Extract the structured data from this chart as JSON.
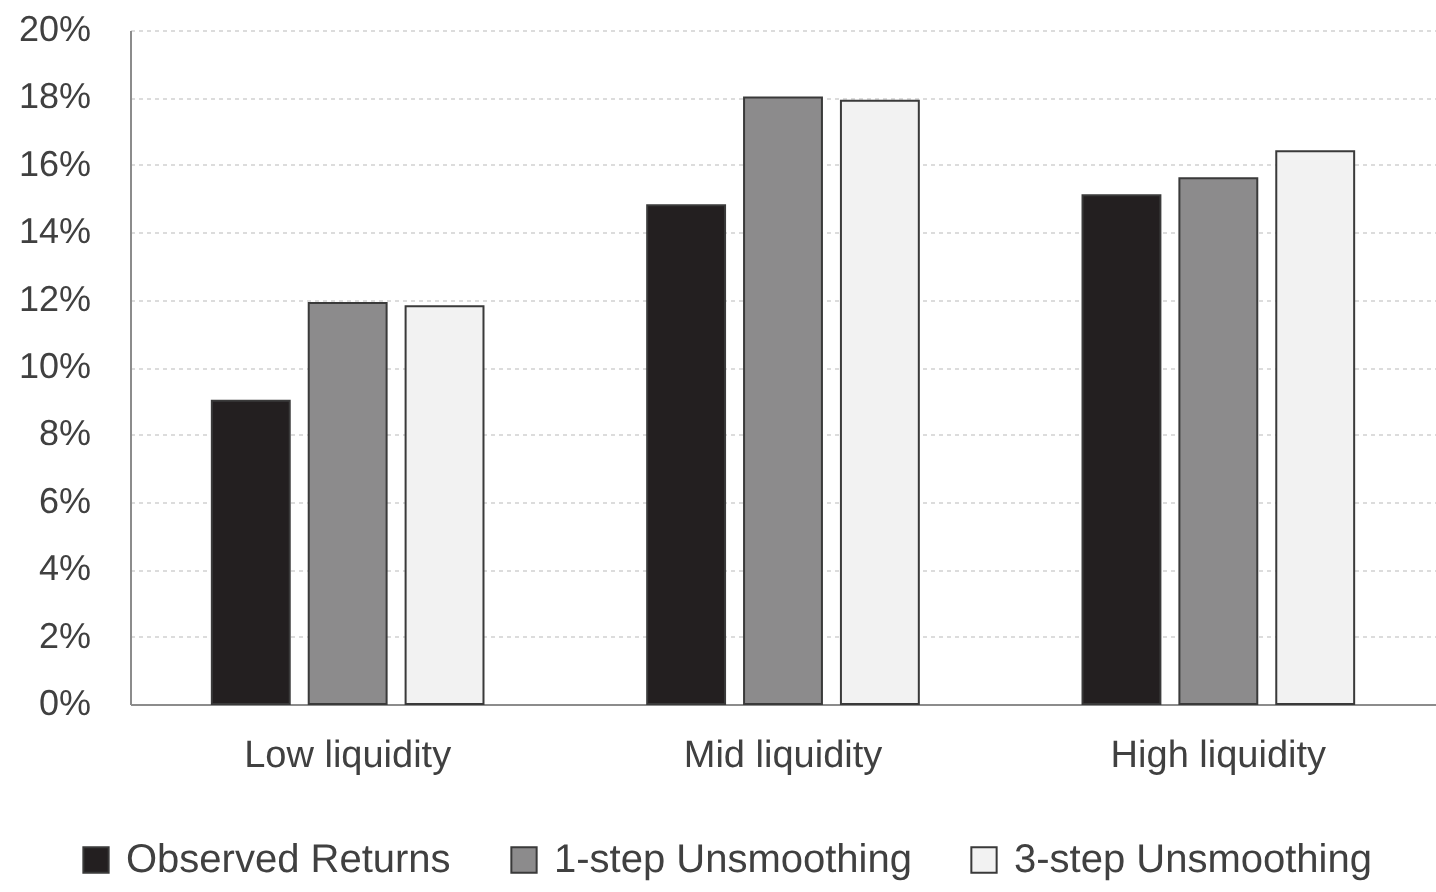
{
  "chart_data": {
    "type": "bar",
    "categories": [
      "Low liquidity",
      "Mid liquidity",
      "High liquidity"
    ],
    "series": [
      {
        "name": "Observed Returns",
        "color": "#231f20",
        "values": [
          9.0,
          14.8,
          15.1
        ]
      },
      {
        "name": "1-step Unsmoothing",
        "color": "#8c8b8c",
        "values": [
          11.9,
          18.0,
          15.6
        ]
      },
      {
        "name": "3-step Unsmoothing",
        "color": "#f2f2f2",
        "values": [
          11.8,
          17.9,
          16.4
        ]
      }
    ],
    "ylim": [
      0,
      20
    ],
    "yticks": [
      {
        "value": 0,
        "label": "0%"
      },
      {
        "value": 2,
        "label": "2%"
      },
      {
        "value": 4,
        "label": "4%"
      },
      {
        "value": 6,
        "label": "6%"
      },
      {
        "value": 8,
        "label": "8%"
      },
      {
        "value": 10,
        "label": "10%"
      },
      {
        "value": 12,
        "label": "12%"
      },
      {
        "value": 14,
        "label": "14%"
      },
      {
        "value": 16,
        "label": "16%"
      },
      {
        "value": 18,
        "label": "18%"
      },
      {
        "value": 20,
        "label": "20%"
      }
    ],
    "grid": "y",
    "legend": "bottom"
  }
}
